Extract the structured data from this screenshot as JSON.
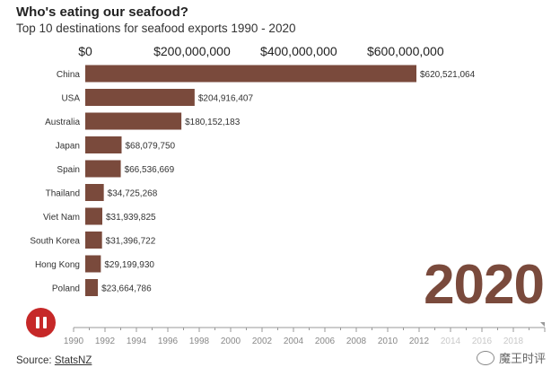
{
  "title": "Who's eating our seafood?",
  "subtitle": "Top 10 destinations for seafood exports 1990 - 2020",
  "source_prefix": "Source: ",
  "source_link": "StatsNZ",
  "current_year": "2020",
  "watermark": "魔王时评",
  "colors": {
    "bar": "#7a4a3c",
    "pause_button": "#c62828",
    "year_text": "#7a4a3c"
  },
  "chart_data": {
    "type": "bar",
    "orientation": "horizontal",
    "title": "Who's eating our seafood?",
    "subtitle": "Top 10 destinations for seafood exports 1990 - 2020",
    "categories": [
      "China",
      "USA",
      "Australia",
      "Japan",
      "Spain",
      "Thailand",
      "Viet Nam",
      "South Korea",
      "Hong Kong",
      "Poland"
    ],
    "values": [
      620521064,
      204916407,
      180152183,
      68079750,
      66536669,
      34725268,
      31939825,
      31396722,
      29199930,
      23664786
    ],
    "value_labels": [
      "$620,521,064",
      "$204,916,407",
      "$180,152,183",
      "$68,079,750",
      "$66,536,669",
      "$34,725,268",
      "$31,939,825",
      "$31,396,722",
      "$29,199,930",
      "$23,664,786"
    ],
    "x_ticks": [
      0,
      200000000,
      400000000,
      600000000
    ],
    "x_tick_labels": [
      "$0",
      "$200,000,000",
      "$400,000,000",
      "$600,000,000"
    ],
    "xlim": [
      0,
      620521064
    ],
    "timeline": {
      "years": [
        1990,
        1992,
        1994,
        1996,
        1998,
        2000,
        2002,
        2004,
        2006,
        2008,
        2010,
        2012,
        2014,
        2016,
        2018
      ],
      "range": [
        1990,
        2020
      ],
      "current": 2020,
      "active_through": 2012
    }
  }
}
